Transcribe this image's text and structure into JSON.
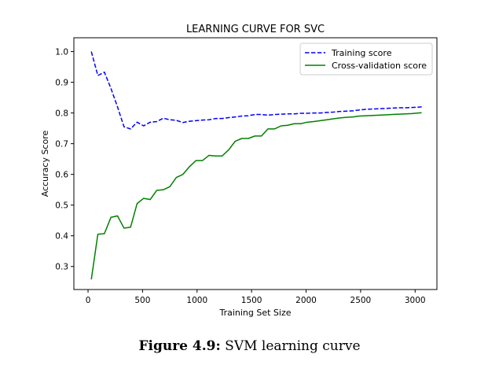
{
  "caption": {
    "label": "Figure 4.9:",
    "text": " SVM learning curve"
  },
  "chart_data": {
    "type": "line",
    "title": "LEARNING CURVE FOR SVC",
    "xlabel": "Training Set Size",
    "ylabel": "Accuracy Score",
    "xlim": [
      -130,
      3200
    ],
    "ylim": [
      0.225,
      1.045
    ],
    "xticks": [
      0,
      500,
      1000,
      1500,
      2000,
      2500,
      3000
    ],
    "yticks": [
      0.3,
      0.4,
      0.5,
      0.6,
      0.7,
      0.8,
      0.9,
      1.0
    ],
    "legend": "top-right",
    "grid": false,
    "series": [
      {
        "name": "Training score",
        "color": "#0000ff",
        "style": "dashed",
        "x": [
          30,
          90,
          150,
          210,
          270,
          330,
          390,
          450,
          510,
          570,
          630,
          690,
          750,
          810,
          870,
          930,
          990,
          1050,
          1110,
          1170,
          1230,
          1290,
          1350,
          1410,
          1470,
          1530,
          1590,
          1650,
          1710,
          1770,
          1830,
          1890,
          1950,
          2010,
          2070,
          2130,
          2190,
          2250,
          2310,
          2370,
          2430,
          2490,
          2550,
          2610,
          2670,
          2730,
          2790,
          2850,
          2910,
          2970,
          3030,
          3060
        ],
        "y": [
          1.0,
          0.922,
          0.933,
          0.88,
          0.82,
          0.755,
          0.748,
          0.77,
          0.758,
          0.77,
          0.772,
          0.783,
          0.778,
          0.776,
          0.769,
          0.773,
          0.775,
          0.777,
          0.778,
          0.782,
          0.782,
          0.785,
          0.787,
          0.79,
          0.791,
          0.795,
          0.795,
          0.793,
          0.795,
          0.796,
          0.797,
          0.797,
          0.799,
          0.799,
          0.8,
          0.8,
          0.802,
          0.803,
          0.805,
          0.806,
          0.807,
          0.81,
          0.812,
          0.813,
          0.814,
          0.815,
          0.816,
          0.817,
          0.817,
          0.818,
          0.819,
          0.82
        ]
      },
      {
        "name": "Cross-validation score",
        "color": "#008000",
        "style": "solid",
        "x": [
          30,
          90,
          150,
          210,
          270,
          330,
          390,
          450,
          510,
          570,
          630,
          690,
          750,
          810,
          870,
          930,
          990,
          1050,
          1110,
          1170,
          1230,
          1290,
          1350,
          1410,
          1470,
          1530,
          1590,
          1650,
          1710,
          1770,
          1830,
          1890,
          1950,
          2010,
          2070,
          2130,
          2190,
          2250,
          2310,
          2370,
          2430,
          2490,
          2550,
          2610,
          2670,
          2730,
          2790,
          2850,
          2910,
          2970,
          3030,
          3060
        ],
        "y": [
          0.258,
          0.405,
          0.407,
          0.46,
          0.465,
          0.425,
          0.428,
          0.505,
          0.522,
          0.518,
          0.548,
          0.55,
          0.56,
          0.59,
          0.6,
          0.625,
          0.645,
          0.645,
          0.662,
          0.66,
          0.66,
          0.68,
          0.708,
          0.717,
          0.717,
          0.725,
          0.725,
          0.748,
          0.748,
          0.758,
          0.76,
          0.765,
          0.765,
          0.77,
          0.772,
          0.775,
          0.778,
          0.781,
          0.784,
          0.786,
          0.787,
          0.79,
          0.791,
          0.792,
          0.793,
          0.794,
          0.795,
          0.796,
          0.797,
          0.798,
          0.8,
          0.801
        ]
      }
    ]
  }
}
